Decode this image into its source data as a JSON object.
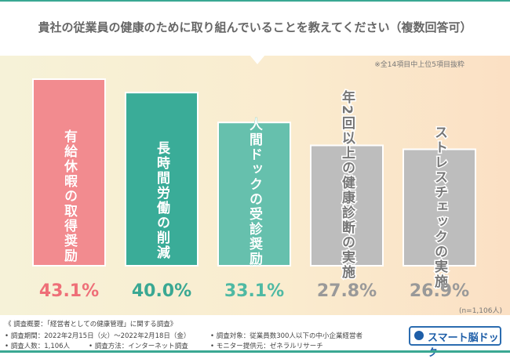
{
  "chart_data": {
    "type": "bar",
    "title": "貴社の従業員の健康のために取り組んでいることを教えてください（複数回答可）",
    "note": "※全14項目中上位5項目抜粋",
    "sample_note": "(n=1,106人)",
    "categories": [
      "有給休暇の取得奨励",
      "長時間労働の削減",
      "人間ドックの受診奨励",
      "年2回以上の健康診断の実施",
      "ストレスチェックの実施"
    ],
    "values": [
      43.1,
      40.0,
      33.1,
      27.8,
      26.9
    ],
    "value_labels": [
      "43.1%",
      "40.0%",
      "33.1%",
      "27.8%",
      "26.9%"
    ],
    "unit": "%",
    "ylim": [
      0,
      50
    ],
    "grid": false,
    "bar_colors": [
      "#f28b8f",
      "#3aac98",
      "#66c0ad",
      "#bdbdbd",
      "#bdbdbd"
    ],
    "label_colors": [
      "#ee6f78",
      "#3aa893",
      "#4fb9a3",
      "#999999",
      "#999999"
    ]
  },
  "footer": {
    "heading": "《 調査概要：「経営者としての健康管理」に関する調査》",
    "period": "• 調査期間：2022年2月15日（火）～2022年2月18日（金）",
    "count": "• 調査人数：1,106人",
    "method": "• 調査方法：インターネット調査",
    "target": "• 調査対象：従業員数300人以下の中小企業経営者",
    "provider": "• モニター提供元：ゼネラルリサーチ",
    "logo": "スマート脳ドック"
  }
}
